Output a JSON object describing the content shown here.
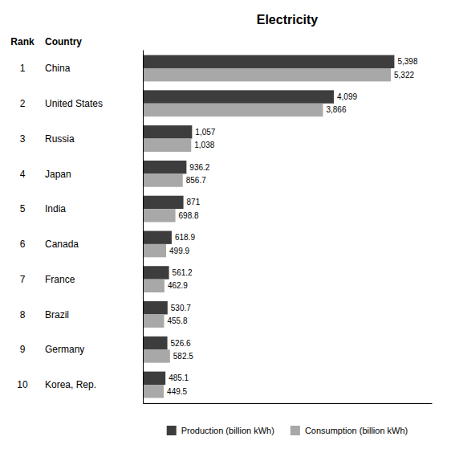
{
  "chart_data": {
    "type": "bar",
    "orientation": "horizontal",
    "title": "Electricity",
    "rank_label": "Rank",
    "category_label": "Country",
    "categories": [
      "China",
      "United States",
      "Russia",
      "Japan",
      "India",
      "Canada",
      "France",
      "Brazil",
      "Germany",
      "Korea, Rep."
    ],
    "ranks": [
      "1",
      "2",
      "3",
      "4",
      "5",
      "6",
      "7",
      "8",
      "9",
      "10"
    ],
    "series": [
      {
        "name": "Production (billion kWh)",
        "color": "#3d3d3d",
        "values": [
          5398,
          4099,
          1057,
          936.2,
          871,
          618.9,
          561.2,
          530.7,
          526.6,
          485.1
        ],
        "value_labels": [
          "5,398",
          "4,099",
          "1,057",
          "936.2",
          "871",
          "618.9",
          "561.2",
          "530.7",
          "526.6",
          "485.1"
        ]
      },
      {
        "name": "Consumption (billion kWh)",
        "color": "#a8a8a8",
        "values": [
          5322,
          3866,
          1038,
          856.7,
          698.8,
          499.9,
          462.9,
          455.8,
          582.5,
          449.5
        ],
        "value_labels": [
          "5,322",
          "3,866",
          "1,038",
          "856.7",
          "698.8",
          "499.9",
          "462.9",
          "455.8",
          "582.5",
          "449.5"
        ]
      }
    ],
    "xlim": [
      0,
      6200
    ],
    "data_labels": true,
    "tick_labels": false,
    "grid": false,
    "legend": "bottom"
  }
}
